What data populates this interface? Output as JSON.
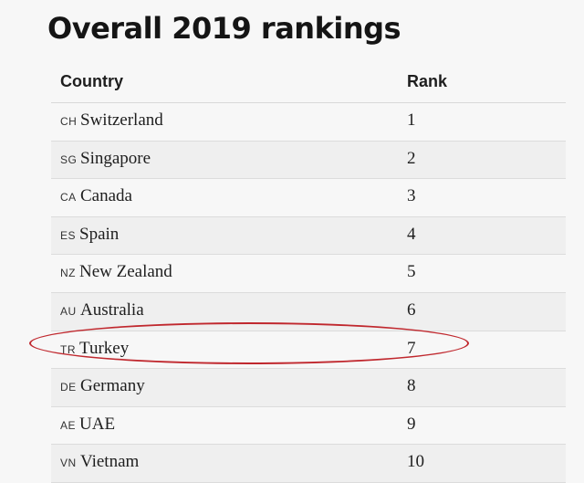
{
  "title": "Overall 2019 rankings",
  "columns": {
    "country": "Country",
    "rank": "Rank"
  },
  "rows": [
    {
      "code": "CH",
      "country": "Switzerland",
      "rank": "1"
    },
    {
      "code": "SG",
      "country": "Singapore",
      "rank": "2"
    },
    {
      "code": "CA",
      "country": "Canada",
      "rank": "3"
    },
    {
      "code": "ES",
      "country": "Spain",
      "rank": "4"
    },
    {
      "code": "NZ",
      "country": "New Zealand",
      "rank": "5"
    },
    {
      "code": "AU",
      "country": "Australia",
      "rank": "6"
    },
    {
      "code": "TR",
      "country": "Turkey",
      "rank": "7"
    },
    {
      "code": "DE",
      "country": "Germany",
      "rank": "8"
    },
    {
      "code": "AE",
      "country": "UAE",
      "rank": "9"
    },
    {
      "code": "VN",
      "country": "Vietnam",
      "rank": "10"
    }
  ],
  "highlight": {
    "country": "Turkey",
    "color": "#c0282e"
  }
}
